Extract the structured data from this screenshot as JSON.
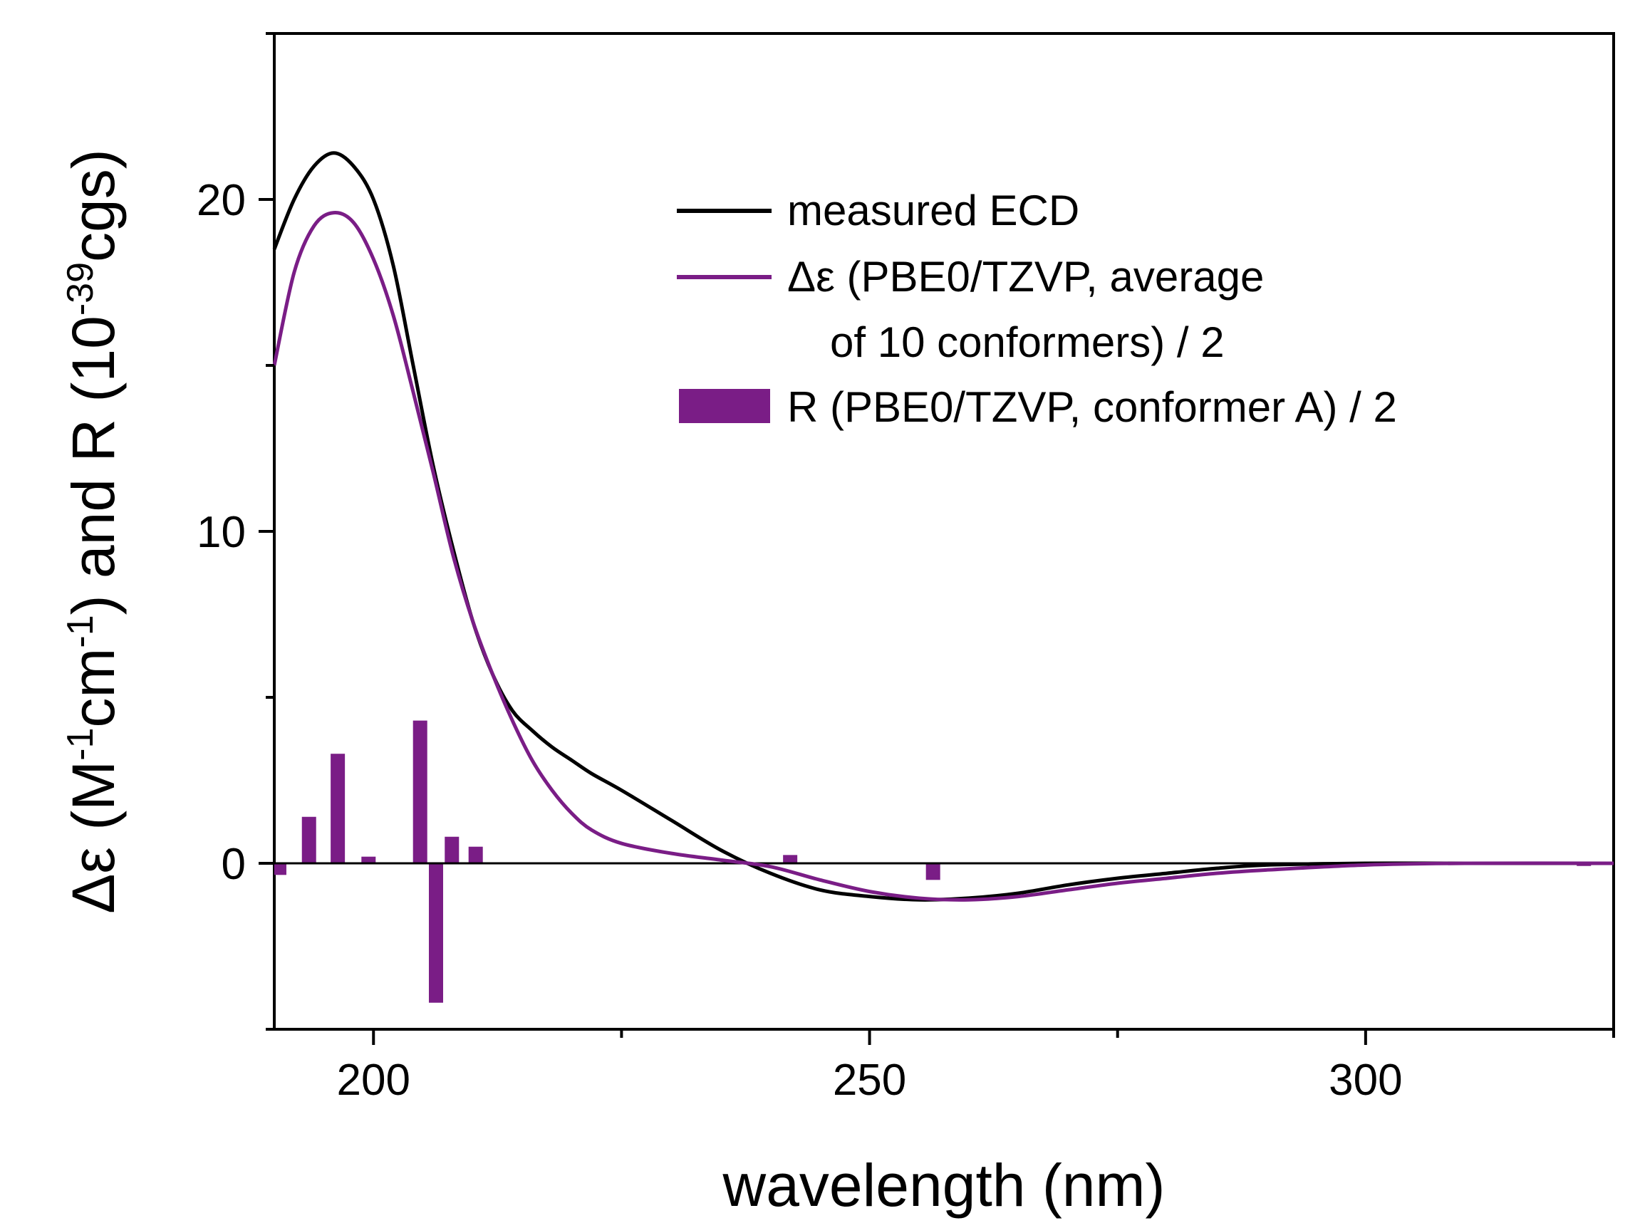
{
  "chart_data": {
    "type": "line",
    "title": "",
    "xlabel": "wavelength (nm)",
    "ylabel_parts": {
      "pre": "Δε (M",
      "exp1": "-1",
      "mid1": "cm",
      "exp2": "-1",
      "mid2": ") and R (10",
      "exp3": "-39",
      "post": "cgs)"
    },
    "xlim": [
      190,
      325
    ],
    "ylim": [
      -5,
      25
    ],
    "x_ticks": [
      200,
      250,
      300
    ],
    "x_minor_ticks": [
      225,
      275,
      325
    ],
    "y_ticks": [
      0,
      10,
      20
    ],
    "y_minor_ticks": [
      -5,
      5,
      15,
      25
    ],
    "zero_line": true,
    "colors": {
      "measured": "#000000",
      "calculated": "#7a1d86",
      "bars": "#7a1d86"
    },
    "legend": [
      {
        "key": "measured",
        "label": "measured ECD"
      },
      {
        "key": "calculated",
        "label": "Δε (PBE0/TZVP, average",
        "label2": "of 10 conformers) / 2"
      },
      {
        "key": "bars",
        "label": "R (PBE0/TZVP, conformer A) / 2"
      }
    ],
    "series": [
      {
        "name": "measured ECD",
        "x": [
          190,
          192,
          194,
          196,
          198,
          200,
          202,
          204,
          206,
          208,
          210,
          212,
          214,
          216,
          218,
          220,
          222,
          225,
          230,
          235,
          240,
          245,
          250,
          255,
          260,
          265,
          270,
          275,
          280,
          285,
          290,
          300,
          310,
          325
        ],
        "y": [
          18.5,
          20.0,
          21.0,
          21.4,
          21.0,
          20.0,
          18.0,
          15.0,
          12.0,
          9.5,
          7.3,
          5.7,
          4.6,
          4.0,
          3.5,
          3.1,
          2.7,
          2.2,
          1.3,
          0.4,
          -0.3,
          -0.8,
          -1.0,
          -1.1,
          -1.05,
          -0.9,
          -0.65,
          -0.45,
          -0.3,
          -0.15,
          -0.05,
          0.0,
          0.0,
          0.0
        ]
      },
      {
        "name": "Δε (PBE0/TZVP, average of 10 conformers) / 2",
        "x": [
          190,
          192,
          194,
          196,
          198,
          200,
          202,
          204,
          206,
          208,
          210,
          212,
          214,
          216,
          218,
          220,
          222,
          225,
          230,
          235,
          240,
          245,
          250,
          255,
          260,
          265,
          270,
          275,
          280,
          285,
          290,
          300,
          310,
          325
        ],
        "y": [
          15.0,
          17.8,
          19.2,
          19.6,
          19.3,
          18.2,
          16.5,
          14.2,
          11.8,
          9.3,
          7.3,
          5.7,
          4.3,
          3.1,
          2.2,
          1.5,
          1.0,
          0.6,
          0.3,
          0.1,
          -0.1,
          -0.5,
          -0.85,
          -1.05,
          -1.1,
          -1.0,
          -0.8,
          -0.6,
          -0.45,
          -0.3,
          -0.2,
          -0.05,
          0.0,
          0.0
        ]
      }
    ],
    "bars": {
      "name": "R (PBE0/TZVP, conformer A) / 2",
      "x": [
        190.5,
        193.5,
        196.4,
        199.5,
        204.7,
        206.3,
        207.9,
        210.3,
        242.0,
        256.4,
        322.0
      ],
      "y": [
        -0.35,
        1.4,
        3.3,
        0.2,
        4.3,
        -4.2,
        0.8,
        0.5,
        0.25,
        -0.5,
        -0.08
      ]
    }
  }
}
